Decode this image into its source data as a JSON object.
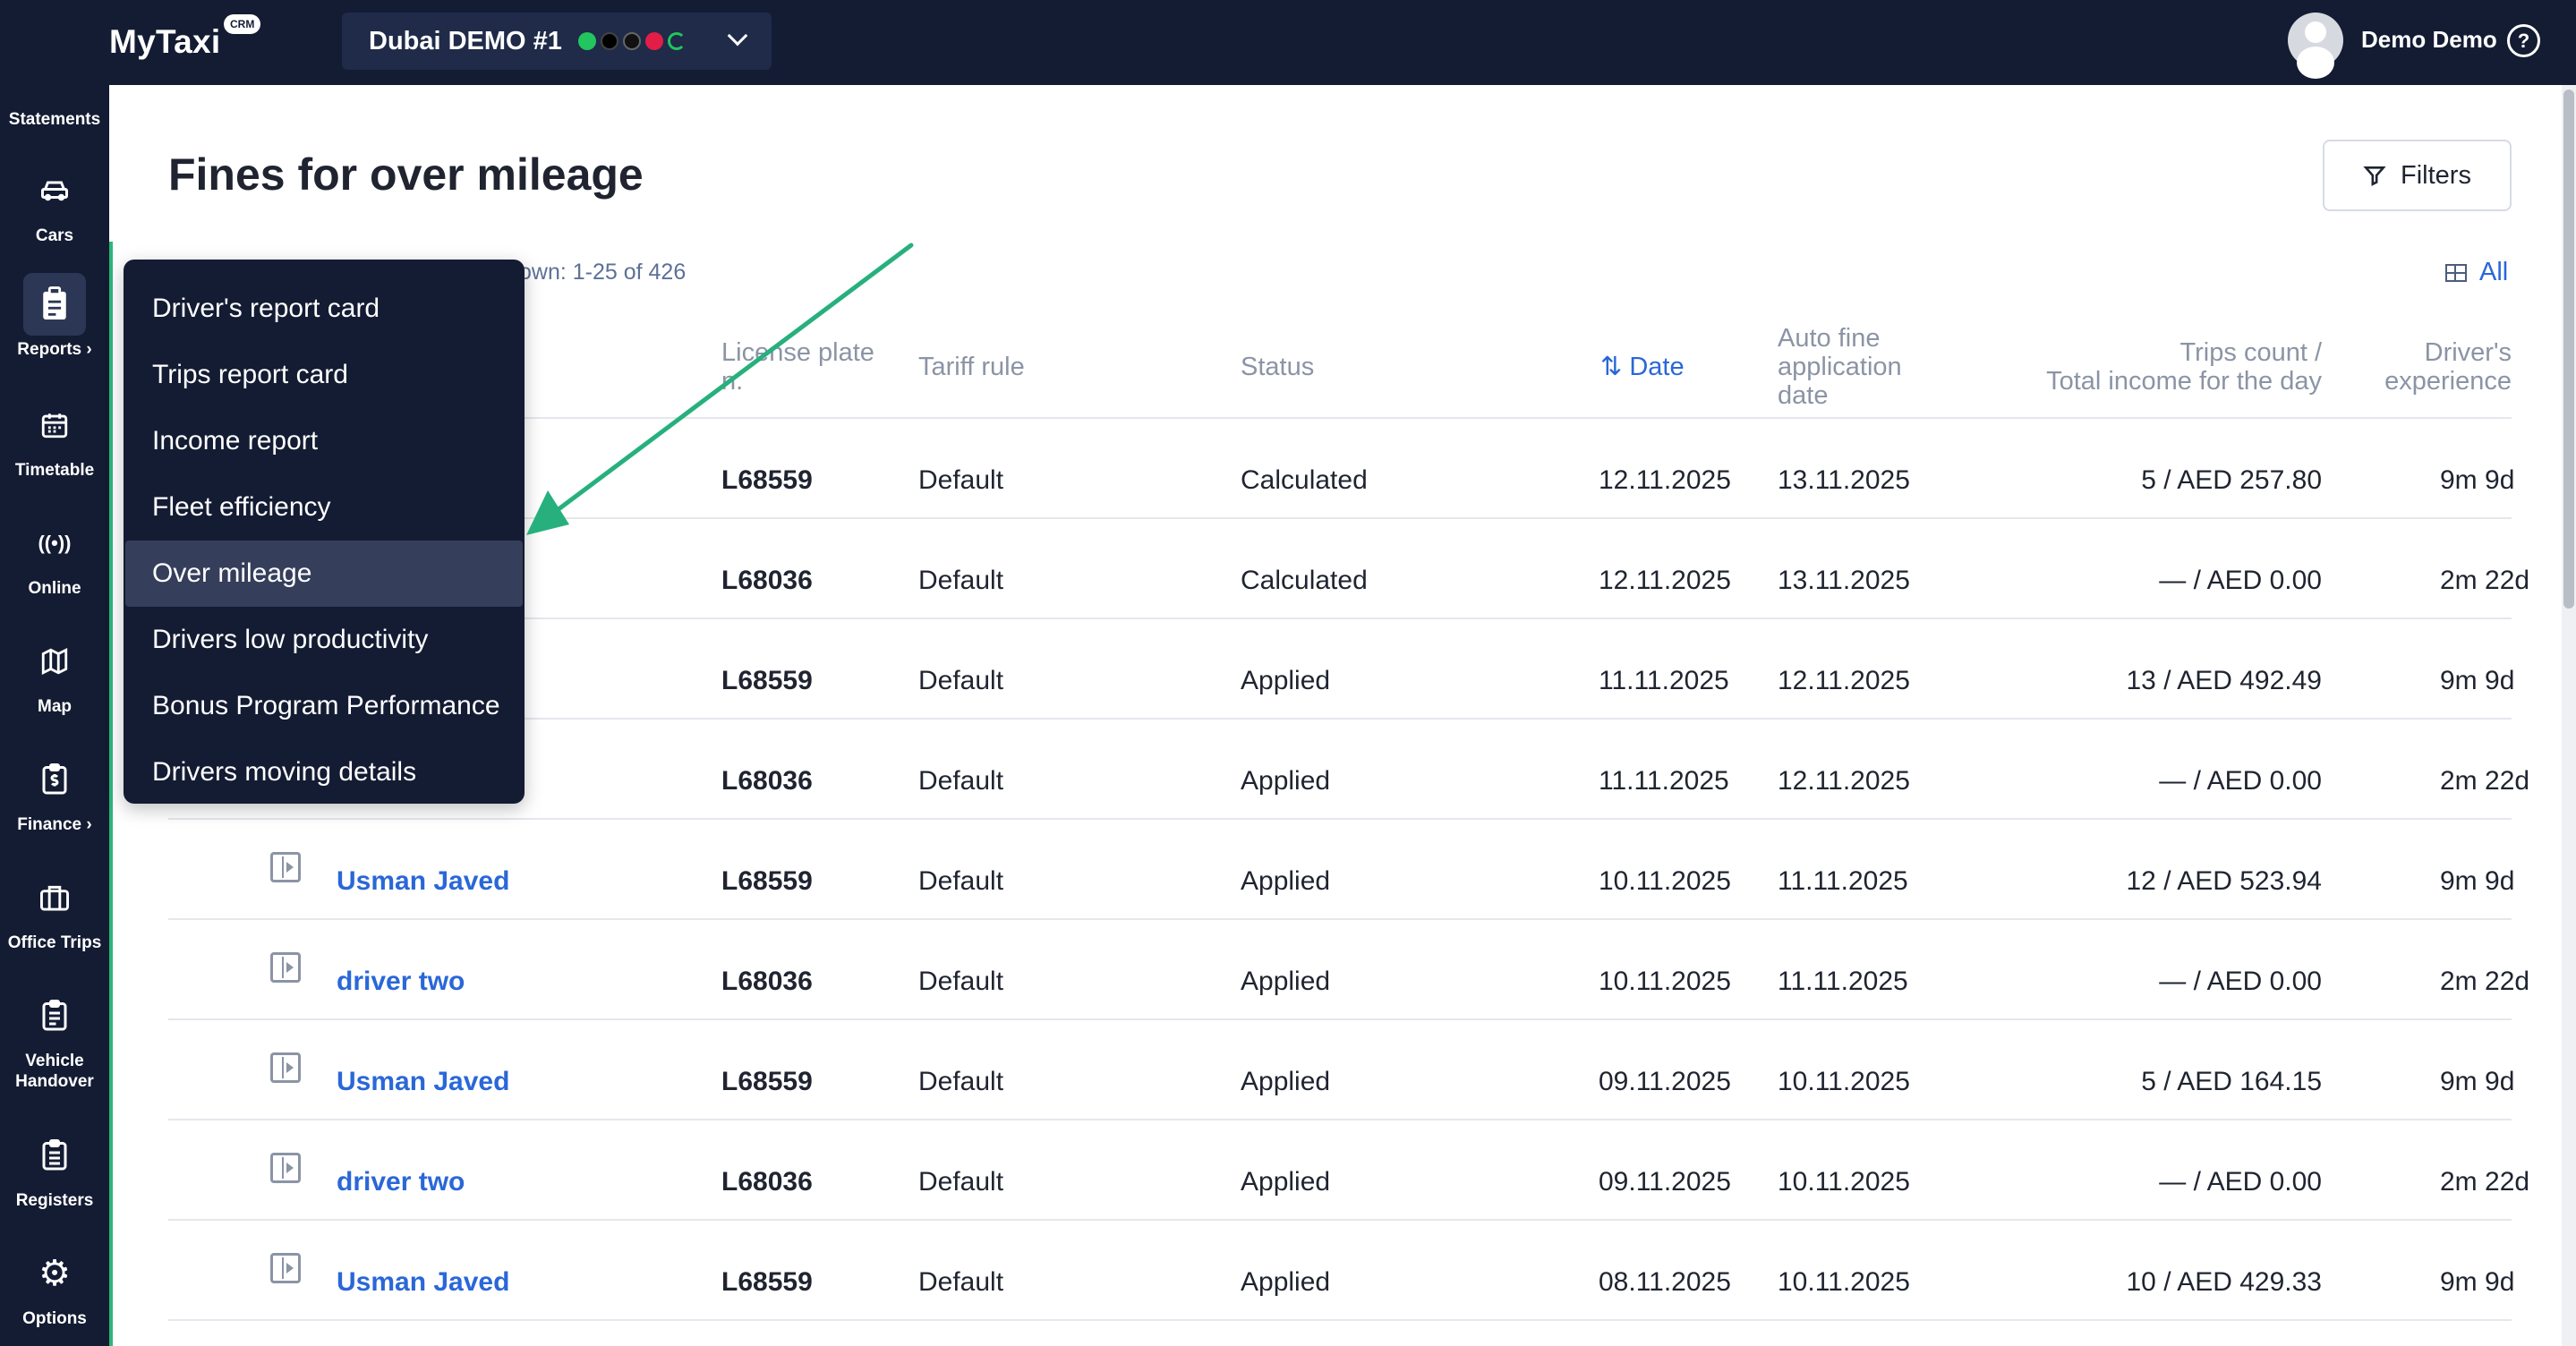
{
  "header": {
    "logo": "MyTaxi",
    "badge": "CRM",
    "fleet_name": "Dubai DEMO #1",
    "user_name": "Demo Demo",
    "help": "?"
  },
  "sidebar": {
    "items": [
      {
        "label": "Statements",
        "icon": "statements-icon"
      },
      {
        "label": "Cars",
        "icon": "car-icon",
        "glyph": "🚗"
      },
      {
        "label": "Reports ›",
        "icon": "clipboard-icon",
        "glyph": "📋"
      },
      {
        "label": "Timetable",
        "icon": "calendar-icon",
        "glyph": "📅"
      },
      {
        "label": "Online",
        "icon": "broadcast-icon",
        "glyph": "((•))"
      },
      {
        "label": "Map",
        "icon": "map-icon",
        "glyph": "🗺"
      },
      {
        "label": "Finance ›",
        "icon": "finance-icon",
        "glyph": "💲"
      },
      {
        "label": "Office Trips",
        "icon": "briefcase-icon",
        "glyph": "💼"
      },
      {
        "label": "Vehicle Handover",
        "icon": "handover-icon",
        "glyph": "📋"
      },
      {
        "label": "Registers",
        "icon": "register-icon",
        "glyph": "📋"
      },
      {
        "label": "Options",
        "icon": "gear-icon",
        "glyph": "⚙"
      }
    ]
  },
  "main": {
    "title": "Fines for over mileage",
    "filters_label": "Filters",
    "shown_text": "own: 1-25 of 426",
    "all_label": "All"
  },
  "table": {
    "headers": {
      "plate": [
        "License plate",
        "n."
      ],
      "tariff": "Tariff rule",
      "status": "Status",
      "date": "⇅ Date",
      "auto_fine": [
        "Auto fine",
        "application",
        "date"
      ],
      "trips": [
        "Trips count /",
        "Total income for the day"
      ],
      "experience": [
        "Driver's",
        "experience"
      ]
    },
    "rows": [
      {
        "driver": "",
        "plate": "L68559",
        "tariff": "Default",
        "status": "Calculated",
        "date": "12.11.2025",
        "auto_fine": "13.11.2025",
        "trips": "5 / AED 257.80",
        "experience": "9m 9d"
      },
      {
        "driver": "",
        "plate": "L68036",
        "tariff": "Default",
        "status": "Calculated",
        "date": "12.11.2025",
        "auto_fine": "13.11.2025",
        "trips": "— / AED 0.00",
        "experience": "2m 22d"
      },
      {
        "driver": "",
        "plate": "L68559",
        "tariff": "Default",
        "status": "Applied",
        "date": "11.11.2025",
        "auto_fine": "12.11.2025",
        "trips": "13 / AED 492.49",
        "experience": "9m 9d"
      },
      {
        "driver": "",
        "plate": "L68036",
        "tariff": "Default",
        "status": "Applied",
        "date": "11.11.2025",
        "auto_fine": "12.11.2025",
        "trips": "— / AED 0.00",
        "experience": "2m 22d"
      },
      {
        "driver": "Usman Javed",
        "plate": "L68559",
        "tariff": "Default",
        "status": "Applied",
        "date": "10.11.2025",
        "auto_fine": "11.11.2025",
        "trips": "12 / AED 523.94",
        "experience": "9m 9d"
      },
      {
        "driver": "driver two",
        "plate": "L68036",
        "tariff": "Default",
        "status": "Applied",
        "date": "10.11.2025",
        "auto_fine": "11.11.2025",
        "trips": "— / AED 0.00",
        "experience": "2m 22d"
      },
      {
        "driver": "Usman Javed",
        "plate": "L68559",
        "tariff": "Default",
        "status": "Applied",
        "date": "09.11.2025",
        "auto_fine": "10.11.2025",
        "trips": "5 / AED 164.15",
        "experience": "9m 9d"
      },
      {
        "driver": "driver two",
        "plate": "L68036",
        "tariff": "Default",
        "status": "Applied",
        "date": "09.11.2025",
        "auto_fine": "10.11.2025",
        "trips": "— / AED 0.00",
        "experience": "2m 22d"
      },
      {
        "driver": "Usman Javed",
        "plate": "L68559",
        "tariff": "Default",
        "status": "Applied",
        "date": "08.11.2025",
        "auto_fine": "10.11.2025",
        "trips": "10 / AED 429.33",
        "experience": "9m 9d"
      }
    ]
  },
  "reports_menu": {
    "items": [
      "Driver's report card",
      "Trips report card",
      "Income report",
      "Fleet efficiency",
      "Over mileage",
      "Drivers low productivity",
      "Bonus Program Performance",
      "Drivers moving details"
    ],
    "selected": "Over mileage"
  },
  "colors": {
    "navy": "#141c33",
    "accent_green": "#2bb67b",
    "link_blue": "#2a67d8",
    "annotation_arrow": "#27b07d"
  }
}
